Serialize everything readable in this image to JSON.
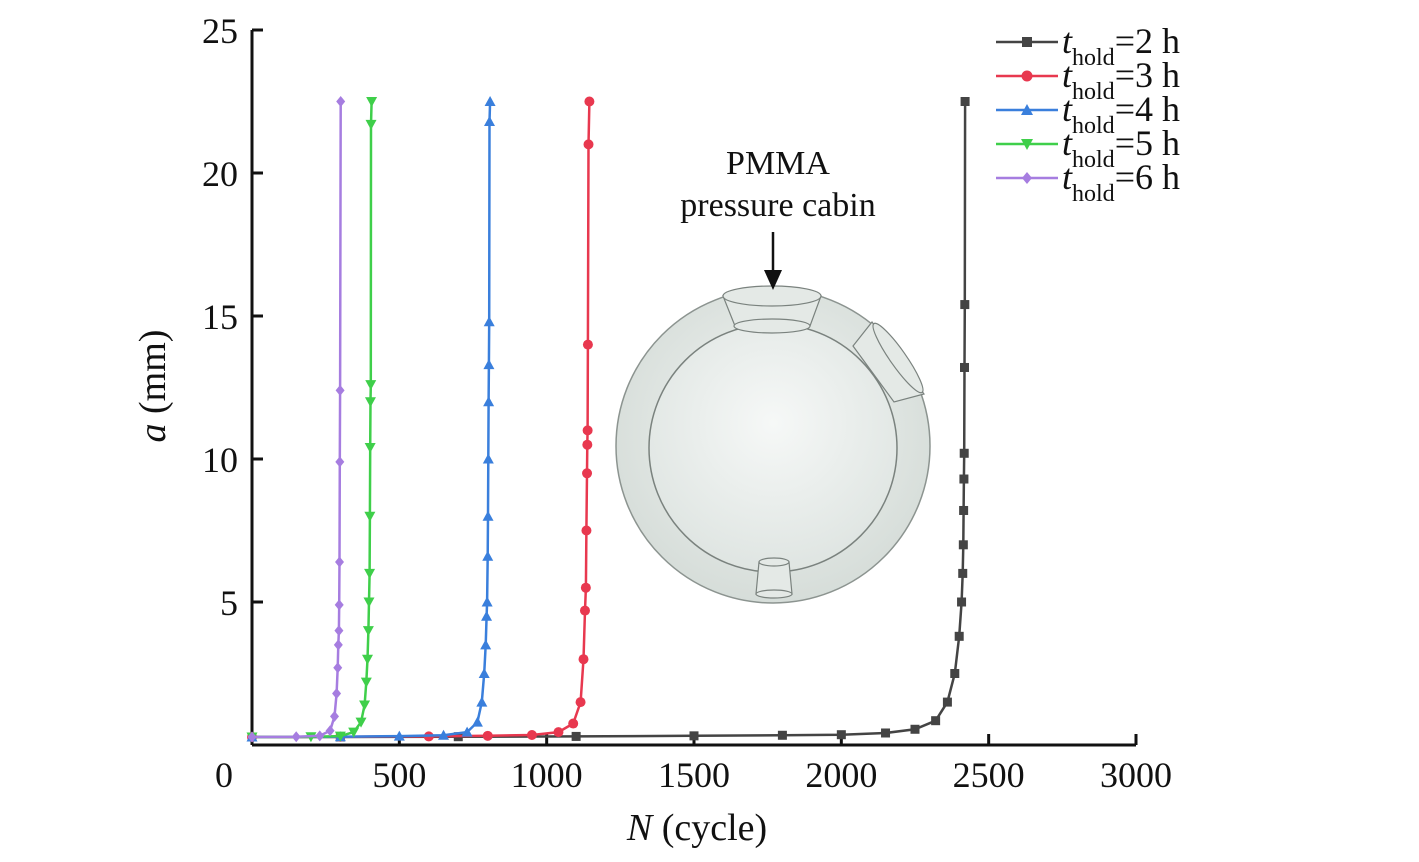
{
  "chart_data": {
    "type": "line",
    "xlabel_var": "N",
    "xlabel_unit": " (cycle)",
    "ylabel_var": "a",
    "ylabel_unit": " (mm)",
    "xlim": [
      0,
      3000
    ],
    "ylim": [
      0,
      25
    ],
    "x_ticks": [
      500,
      1000,
      1500,
      2000,
      2500,
      3000
    ],
    "y_ticks": [
      5,
      10,
      15,
      20,
      25
    ],
    "origin_label": "0",
    "grid": false,
    "legend_position": "top-right",
    "legend_prefix": "t",
    "legend_subscript": "hold",
    "series": [
      {
        "name": "=2 h",
        "color": "#444444",
        "marker": "square",
        "points": [
          [
            0,
            0.28
          ],
          [
            300,
            0.28
          ],
          [
            700,
            0.29
          ],
          [
            1100,
            0.3
          ],
          [
            1500,
            0.32
          ],
          [
            1800,
            0.34
          ],
          [
            2000,
            0.36
          ],
          [
            2150,
            0.42
          ],
          [
            2250,
            0.55
          ],
          [
            2320,
            0.85
          ],
          [
            2360,
            1.5
          ],
          [
            2385,
            2.5
          ],
          [
            2400,
            3.8
          ],
          [
            2408,
            5.0
          ],
          [
            2412,
            6.0
          ],
          [
            2414,
            7.0
          ],
          [
            2415,
            8.2
          ],
          [
            2416,
            9.3
          ],
          [
            2417,
            10.2
          ],
          [
            2418,
            13.2
          ],
          [
            2419,
            15.4
          ],
          [
            2420,
            22.5
          ]
        ]
      },
      {
        "name": "=3 h",
        "color": "#e8384f",
        "marker": "circle",
        "points": [
          [
            0,
            0.28
          ],
          [
            300,
            0.29
          ],
          [
            600,
            0.3
          ],
          [
            800,
            0.32
          ],
          [
            950,
            0.35
          ],
          [
            1040,
            0.45
          ],
          [
            1090,
            0.75
          ],
          [
            1115,
            1.5
          ],
          [
            1125,
            3.0
          ],
          [
            1130,
            4.7
          ],
          [
            1133,
            5.5
          ],
          [
            1135,
            7.5
          ],
          [
            1137,
            9.5
          ],
          [
            1138,
            10.5
          ],
          [
            1139,
            11.0
          ],
          [
            1140,
            14.0
          ],
          [
            1142,
            21.0
          ],
          [
            1145,
            22.5
          ]
        ]
      },
      {
        "name": "=4 h",
        "color": "#3a7fdc",
        "marker": "triangle-up",
        "points": [
          [
            0,
            0.28
          ],
          [
            300,
            0.29
          ],
          [
            500,
            0.31
          ],
          [
            650,
            0.34
          ],
          [
            730,
            0.45
          ],
          [
            765,
            0.8
          ],
          [
            780,
            1.5
          ],
          [
            788,
            2.5
          ],
          [
            793,
            3.5
          ],
          [
            796,
            4.5
          ],
          [
            798,
            5.0
          ],
          [
            800,
            6.6
          ],
          [
            801,
            8.0
          ],
          [
            802,
            10.0
          ],
          [
            803,
            12.0
          ],
          [
            804,
            13.3
          ],
          [
            805,
            14.8
          ],
          [
            806,
            21.8
          ],
          [
            808,
            22.5
          ]
        ]
      },
      {
        "name": "=5 h",
        "color": "#3fcf4a",
        "marker": "triangle-down",
        "points": [
          [
            0,
            0.28
          ],
          [
            200,
            0.29
          ],
          [
            300,
            0.31
          ],
          [
            345,
            0.45
          ],
          [
            370,
            0.8
          ],
          [
            382,
            1.4
          ],
          [
            388,
            2.2
          ],
          [
            392,
            3.0
          ],
          [
            395,
            4.0
          ],
          [
            397,
            5.0
          ],
          [
            399,
            6.0
          ],
          [
            400,
            8.0
          ],
          [
            401,
            10.4
          ],
          [
            402,
            12.0
          ],
          [
            403,
            12.6
          ],
          [
            404,
            21.7
          ],
          [
            406,
            22.5
          ]
        ]
      },
      {
        "name": "=6 h",
        "color": "#a67de0",
        "marker": "diamond",
        "points": [
          [
            0,
            0.28
          ],
          [
            150,
            0.29
          ],
          [
            230,
            0.32
          ],
          [
            265,
            0.5
          ],
          [
            280,
            1.0
          ],
          [
            287,
            1.8
          ],
          [
            291,
            2.7
          ],
          [
            293,
            3.5
          ],
          [
            295,
            4.0
          ],
          [
            296,
            4.9
          ],
          [
            297,
            6.4
          ],
          [
            298,
            9.9
          ],
          [
            299,
            12.4
          ],
          [
            301,
            22.5
          ]
        ]
      }
    ]
  },
  "inset": {
    "title_line1": "PMMA",
    "title_line2": "pressure cabin"
  }
}
